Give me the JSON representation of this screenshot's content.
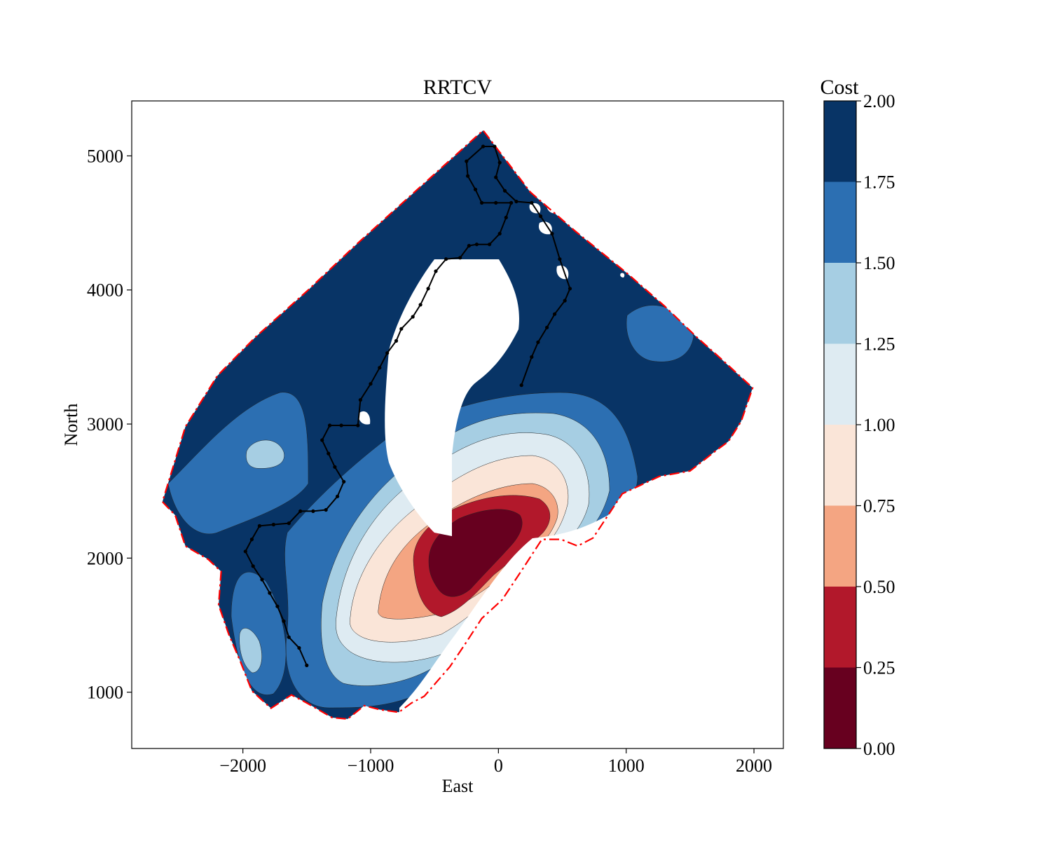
{
  "chart_data": {
    "type": "contour",
    "title": "RRTCV",
    "xlabel": "East",
    "ylabel": "North",
    "xlim": [
      -2870,
      2230
    ],
    "ylim": [
      580,
      5410
    ],
    "xticks": [
      -2000,
      -1000,
      0,
      1000,
      2000
    ],
    "xtick_labels": [
      "−2000",
      "−1000",
      "0",
      "1000",
      "2000"
    ],
    "yticks": [
      1000,
      2000,
      3000,
      4000,
      5000
    ],
    "ytick_labels": [
      "1000",
      "2000",
      "3000",
      "4000",
      "5000"
    ],
    "colorbar": {
      "label": "Cost",
      "levels": [
        0.0,
        0.25,
        0.5,
        0.75,
        1.0,
        1.25,
        1.5,
        1.75,
        2.0
      ],
      "tick_labels": [
        "0.00",
        "0.25",
        "0.50",
        "0.75",
        "1.00",
        "1.25",
        "1.50",
        "1.75",
        "2.00"
      ],
      "colors": [
        "#67001f",
        "#b2182b",
        "#f4a582",
        "#fae5d8",
        "#deebf2",
        "#a6cee3",
        "#2c6fb2",
        "#083466"
      ]
    },
    "region_boundary": {
      "style": "dash-dot",
      "color": "#ff0000",
      "points": [
        [
          -2630,
          2420
        ],
        [
          -2530,
          2320
        ],
        [
          -2450,
          2090
        ],
        [
          -2270,
          1990
        ],
        [
          -2170,
          1900
        ],
        [
          -2190,
          1650
        ],
        [
          -2110,
          1430
        ],
        [
          -2020,
          1230
        ],
        [
          -1930,
          1010
        ],
        [
          -1780,
          880
        ],
        [
          -1620,
          980
        ],
        [
          -1500,
          920
        ],
        [
          -1300,
          810
        ],
        [
          -1180,
          800
        ],
        [
          -1050,
          900
        ],
        [
          -930,
          870
        ],
        [
          -780,
          850
        ],
        [
          -680,
          920
        ],
        [
          -580,
          970
        ],
        [
          -480,
          1080
        ],
        [
          -380,
          1190
        ],
        [
          -260,
          1360
        ],
        [
          -130,
          1550
        ],
        [
          30,
          1690
        ],
        [
          190,
          1920
        ],
        [
          340,
          2140
        ],
        [
          490,
          2140
        ],
        [
          620,
          2090
        ],
        [
          740,
          2150
        ],
        [
          970,
          2480
        ],
        [
          1260,
          2610
        ],
        [
          1500,
          2650
        ],
        [
          1700,
          2800
        ],
        [
          1800,
          2870
        ],
        [
          1900,
          3020
        ],
        [
          1990,
          3270
        ],
        [
          1750,
          3480
        ],
        [
          1550,
          3650
        ],
        [
          1300,
          3880
        ],
        [
          1000,
          4130
        ],
        [
          600,
          4440
        ],
        [
          250,
          4730
        ],
        [
          -120,
          5190
        ],
        [
          -400,
          4950
        ],
        [
          -750,
          4650
        ],
        [
          -1100,
          4350
        ],
        [
          -1500,
          3990
        ],
        [
          -1900,
          3650
        ],
        [
          -2200,
          3360
        ],
        [
          -2450,
          2980
        ],
        [
          -2630,
          2420
        ]
      ]
    },
    "start_point": [
      -1500,
      1200
    ],
    "goal_point": [
      180,
      3290
    ],
    "path": [
      [
        -1500,
        1200
      ],
      [
        -1560,
        1330
      ],
      [
        -1640,
        1410
      ],
      [
        -1680,
        1530
      ],
      [
        -1730,
        1640
      ],
      [
        -1790,
        1740
      ],
      [
        -1850,
        1840
      ],
      [
        -1920,
        1940
      ],
      [
        -1980,
        2050
      ],
      [
        -1930,
        2140
      ],
      [
        -1870,
        2240
      ],
      [
        -1760,
        2250
      ],
      [
        -1640,
        2260
      ],
      [
        -1550,
        2350
      ],
      [
        -1450,
        2350
      ],
      [
        -1350,
        2360
      ],
      [
        -1260,
        2460
      ],
      [
        -1210,
        2570
      ],
      [
        -1280,
        2680
      ],
      [
        -1330,
        2780
      ],
      [
        -1380,
        2880
      ],
      [
        -1320,
        2990
      ],
      [
        -1230,
        2990
      ],
      [
        -1100,
        2990
      ],
      [
        -1080,
        3180
      ],
      [
        -1000,
        3300
      ],
      [
        -930,
        3420
      ],
      [
        -870,
        3530
      ],
      [
        -800,
        3620
      ],
      [
        -760,
        3710
      ],
      [
        -670,
        3800
      ],
      [
        -610,
        3890
      ],
      [
        -550,
        4010
      ],
      [
        -490,
        4140
      ],
      [
        -410,
        4230
      ],
      [
        -300,
        4240
      ],
      [
        -230,
        4330
      ],
      [
        -170,
        4340
      ],
      [
        -70,
        4340
      ],
      [
        10,
        4420
      ],
      [
        60,
        4540
      ],
      [
        100,
        4650
      ],
      [
        -20,
        4650
      ],
      [
        -130,
        4650
      ],
      [
        -180,
        4750
      ],
      [
        -240,
        4850
      ],
      [
        -250,
        4960
      ],
      [
        -120,
        5070
      ],
      [
        -30,
        5070
      ],
      [
        10,
        4950
      ],
      [
        -20,
        4840
      ],
      [
        50,
        4740
      ],
      [
        140,
        4660
      ],
      [
        260,
        4650
      ],
      [
        330,
        4550
      ],
      [
        420,
        4420
      ],
      [
        480,
        4230
      ],
      [
        560,
        4010
      ],
      [
        520,
        3920
      ],
      [
        440,
        3820
      ],
      [
        380,
        3720
      ],
      [
        310,
        3610
      ],
      [
        260,
        3500
      ],
      [
        180,
        3290
      ]
    ]
  }
}
